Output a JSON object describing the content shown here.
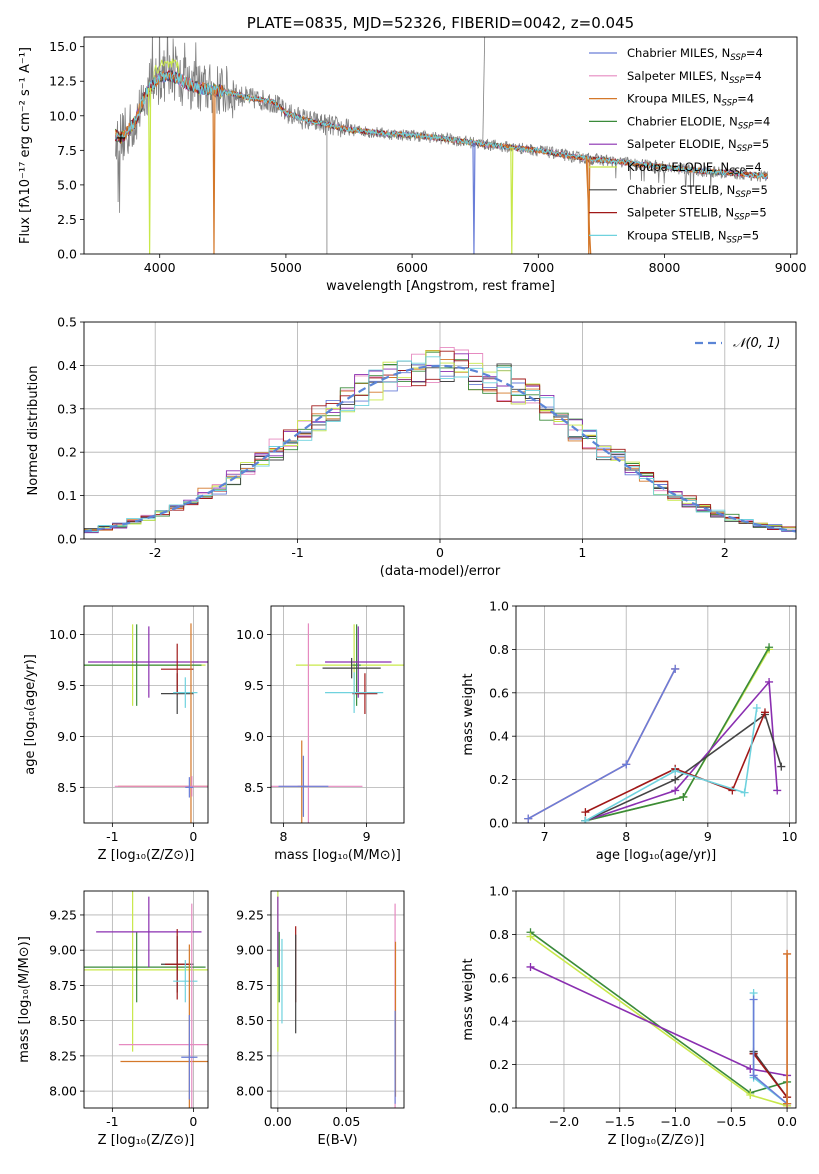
{
  "colors": {
    "Chabrier MILES": "#6a7ed8",
    "Salpeter MILES": "#e68ac0",
    "Kroupa MILES": "#d4782a",
    "Chabrier ELODIE": "#3a8a3a",
    "Salpeter ELODIE": "#8a2fb0",
    "Kroupa ELODIE": "#c8e84a",
    "Chabrier STELIB": "#444444",
    "Salpeter STELIB": "#a01818",
    "Kroupa STELIB": "#6fd2de",
    "data": "#808080",
    "normal": "#5b85d6",
    "grid": "#b0b0b0"
  },
  "chart_data": [
    {
      "id": "spectrum",
      "type": "line",
      "title": "PLATE=0835, MJD=52326, FIBERID=0042, z=0.045",
      "xlabel": "wavelength [Angstrom, rest frame]",
      "ylabel": "Flux [fλ10⁻¹⁷ erg cm⁻² s⁻¹ A⁻¹]",
      "xlim": [
        3400,
        9050
      ],
      "ylim": [
        0,
        15.7
      ],
      "xticks": [
        4000,
        5000,
        6000,
        7000,
        8000,
        9000
      ],
      "yticks": [
        0.0,
        2.5,
        5.0,
        7.5,
        10.0,
        12.5,
        15.0
      ],
      "grid": false,
      "legend_position": "top-right",
      "continuum": {
        "x": [
          3650,
          3700,
          3800,
          3900,
          4000,
          4100,
          4200,
          4300,
          4500,
          4700,
          4900,
          5000,
          5200,
          5500,
          5800,
          6000,
          6300,
          6600,
          7000,
          7300,
          7600,
          8000,
          8300,
          8600,
          8820
        ],
        "y": [
          8.6,
          8.4,
          9.5,
          11.8,
          12.8,
          12.9,
          12.4,
          12.0,
          11.8,
          11.3,
          11.0,
          10.2,
          9.6,
          9.0,
          8.7,
          8.6,
          8.3,
          7.9,
          7.5,
          7.0,
          6.7,
          6.3,
          6.0,
          5.8,
          5.6
        ]
      },
      "dips": [
        {
          "x": 3920,
          "series": "Kroupa ELODIE"
        },
        {
          "x": 4430,
          "series": "Kroupa MILES"
        },
        {
          "x": 6490,
          "series": "Chabrier MILES"
        },
        {
          "x": 6790,
          "series": "Kroupa ELODIE"
        },
        {
          "x": 7400,
          "series": "Kroupa MILES"
        }
      ],
      "legend": [
        {
          "name": "Chabrier MILES, N",
          "sub": "SSP",
          "suffix": "=4"
        },
        {
          "name": "Salpeter MILES, N",
          "sub": "SSP",
          "suffix": "=4"
        },
        {
          "name": "Kroupa MILES, N",
          "sub": "SSP",
          "suffix": "=4"
        },
        {
          "name": "Chabrier ELODIE, N",
          "sub": "SSP",
          "suffix": "=4"
        },
        {
          "name": "Salpeter ELODIE, N",
          "sub": "SSP",
          "suffix": "=5"
        },
        {
          "name": "Kroupa ELODIE, N",
          "sub": "SSP",
          "suffix": "=4"
        },
        {
          "name": "Chabrier STELIB, N",
          "sub": "SSP",
          "suffix": "=5"
        },
        {
          "name": "Salpeter STELIB, N",
          "sub": "SSP",
          "suffix": "=5"
        },
        {
          "name": "Kroupa STELIB, N",
          "sub": "SSP",
          "suffix": "=5"
        }
      ]
    },
    {
      "id": "residuals",
      "type": "line",
      "xlabel": "(data-model)/error",
      "ylabel": "Normed distribution",
      "xlim": [
        -2.5,
        2.5
      ],
      "ylim": [
        0,
        0.5
      ],
      "xticks": [
        -2,
        -1,
        0,
        1,
        2
      ],
      "yticks": [
        0.0,
        0.1,
        0.2,
        0.3,
        0.4,
        0.5
      ],
      "grid": true,
      "legend_position": "top-right",
      "legend_label": "𝒩(0, 1)",
      "bin_width": 0.1
    },
    {
      "id": "age-vs-Z",
      "type": "scatter",
      "xlabel": "Z [log₁₀(Z/Z⊙)]",
      "ylabel": "age  [log₁₀(age/yr)]",
      "xlim": [
        -1.35,
        0.18
      ],
      "ylim": [
        8.15,
        10.28
      ],
      "xticks": [
        -1,
        0
      ],
      "yticks": [
        8.5,
        9.0,
        9.5,
        10.0
      ],
      "grid": true,
      "points": [
        {
          "series": "Kroupa ELODIE",
          "x": -0.75,
          "y": 9.7,
          "xerr": 0.9,
          "yerr": 0.4
        },
        {
          "series": "Chabrier ELODIE",
          "x": -0.7,
          "y": 9.7,
          "xerr": 0.8,
          "yerr": 0.4
        },
        {
          "series": "Salpeter ELODIE",
          "x": -0.55,
          "y": 9.73,
          "xerr": 0.75,
          "yerr": 0.35
        },
        {
          "series": "Chabrier STELIB",
          "x": -0.2,
          "y": 9.42,
          "xerr": 0.2,
          "yerr": 0.2
        },
        {
          "series": "Salpeter STELIB",
          "x": -0.2,
          "y": 9.66,
          "xerr": 0.2,
          "yerr": 0.25
        },
        {
          "series": "Kroupa STELIB",
          "x": -0.1,
          "y": 9.43,
          "xerr": 0.15,
          "yerr": 0.15
        },
        {
          "series": "Kroupa MILES",
          "x": -0.03,
          "y": 8.51,
          "xerr": 0.9,
          "yerr": 1.6
        },
        {
          "series": "Salpeter MILES",
          "x": -0.02,
          "y": 8.51,
          "xerr": 0.95,
          "yerr": 0.1
        },
        {
          "series": "Chabrier MILES",
          "x": -0.05,
          "y": 8.5,
          "xerr": 0.05,
          "yerr": 0.1
        }
      ]
    },
    {
      "id": "age-vs-mass",
      "type": "scatter",
      "xlabel": "mass [log₁₀(M/M⊙)]",
      "ylabel": "",
      "xlim": [
        7.85,
        9.45
      ],
      "ylim": [
        8.15,
        10.28
      ],
      "xticks": [
        8,
        9
      ],
      "yticks": [
        8.5,
        9.0,
        9.5,
        10.0
      ],
      "grid": true,
      "points": [
        {
          "series": "Kroupa ELODIE",
          "x": 8.85,
          "y": 9.7,
          "xerr": 0.7,
          "yerr": 0.4
        },
        {
          "series": "Chabrier ELODIE",
          "x": 8.88,
          "y": 9.7,
          "xerr": 0.05,
          "yerr": 0.4
        },
        {
          "series": "Salpeter ELODIE",
          "x": 8.9,
          "y": 9.73,
          "xerr": 0.4,
          "yerr": 0.35
        },
        {
          "series": "Chabrier STELIB",
          "x": 8.82,
          "y": 9.67,
          "xerr": 0.35,
          "yerr": 0.1
        },
        {
          "series": "Salpeter STELIB",
          "x": 8.98,
          "y": 9.42,
          "xerr": 0.15,
          "yerr": 0.2
        },
        {
          "series": "Kroupa STELIB",
          "x": 8.85,
          "y": 9.43,
          "xerr": 0.35,
          "yerr": 0.2
        },
        {
          "series": "Kroupa MILES",
          "x": 8.22,
          "y": 8.51,
          "xerr": 0.05,
          "yerr": 0.45
        },
        {
          "series": "Salpeter MILES",
          "x": 8.3,
          "y": 8.51,
          "xerr": 0.65,
          "yerr": 1.6
        },
        {
          "series": "Chabrier MILES",
          "x": 8.24,
          "y": 8.51,
          "xerr": 0.3,
          "yerr": 0.3
        }
      ]
    },
    {
      "id": "weight-vs-age",
      "type": "line",
      "xlabel": "age  [log₁₀(age/yr)]",
      "ylabel": "mass weight",
      "xlim": [
        6.65,
        10.08
      ],
      "ylim": [
        0,
        1
      ],
      "xticks": [
        7,
        8,
        9,
        10
      ],
      "yticks": [
        0.0,
        0.2,
        0.4,
        0.6,
        0.8,
        1.0
      ],
      "grid": true,
      "series": [
        {
          "name": "Kroupa MILES",
          "x": [
            6.8,
            8.0,
            8.6
          ],
          "y": [
            0.02,
            0.27,
            0.71
          ]
        },
        {
          "name": "Salpeter MILES",
          "x": [
            6.8,
            8.0,
            8.6
          ],
          "y": [
            0.02,
            0.27,
            0.71
          ]
        },
        {
          "name": "Chabrier MILES",
          "x": [
            6.8,
            8.0,
            8.6
          ],
          "y": [
            0.02,
            0.27,
            0.71
          ]
        },
        {
          "name": "Kroupa ELODIE",
          "x": [
            7.5,
            8.7,
            9.75
          ],
          "y": [
            0.01,
            0.12,
            0.8
          ]
        },
        {
          "name": "Chabrier ELODIE",
          "x": [
            7.5,
            8.7,
            9.75
          ],
          "y": [
            0.01,
            0.12,
            0.81
          ]
        },
        {
          "name": "Salpeter ELODIE",
          "x": [
            7.5,
            8.6,
            9.75,
            9.85
          ],
          "y": [
            0.01,
            0.15,
            0.65,
            0.15
          ]
        },
        {
          "name": "Chabrier STELIB",
          "x": [
            7.5,
            8.6,
            9.7,
            9.9
          ],
          "y": [
            0.01,
            0.2,
            0.5,
            0.26
          ]
        },
        {
          "name": "Salpeter STELIB",
          "x": [
            7.5,
            8.6,
            9.3,
            9.7
          ],
          "y": [
            0.05,
            0.25,
            0.15,
            0.51
          ]
        },
        {
          "name": "Kroupa STELIB",
          "x": [
            7.5,
            8.6,
            9.45,
            9.6
          ],
          "y": [
            0.01,
            0.24,
            0.14,
            0.53
          ]
        }
      ]
    },
    {
      "id": "mass-vs-Z",
      "type": "scatter",
      "xlabel": "Z [log₁₀(Z/Z⊙)]",
      "ylabel": "mass [log₁₀(M/M⊙)]",
      "xlim": [
        -1.35,
        0.18
      ],
      "ylim": [
        7.88,
        9.42
      ],
      "xticks": [
        -1,
        0
      ],
      "yticks": [
        8.0,
        8.25,
        8.5,
        8.75,
        9.0,
        9.25
      ],
      "grid": true,
      "points": [
        {
          "series": "Kroupa ELODIE",
          "x": -0.75,
          "y": 8.86,
          "xerr": 0.95,
          "yerr": 0.58
        },
        {
          "series": "Chabrier ELODIE",
          "x": -0.7,
          "y": 8.88,
          "xerr": 0.85,
          "yerr": 0.25
        },
        {
          "series": "Salpeter ELODIE",
          "x": -0.55,
          "y": 9.13,
          "xerr": 0.65,
          "yerr": 0.25
        },
        {
          "series": "Chabrier STELIB",
          "x": -0.2,
          "y": 8.9,
          "xerr": 0.2,
          "yerr": 0.2
        },
        {
          "series": "Salpeter STELIB",
          "x": -0.2,
          "y": 8.9,
          "xerr": 0.15,
          "yerr": 0.25
        },
        {
          "series": "Kroupa STELIB",
          "x": -0.1,
          "y": 8.78,
          "xerr": 0.15,
          "yerr": 0.15
        },
        {
          "series": "Kroupa MILES",
          "x": -0.05,
          "y": 8.21,
          "xerr": 0.85,
          "yerr": 0.83
        },
        {
          "series": "Salpeter MILES",
          "x": -0.02,
          "y": 8.33,
          "xerr": 0.9,
          "yerr": 1.0
        },
        {
          "series": "Chabrier MILES",
          "x": -0.05,
          "y": 8.24,
          "xerr": 0.1,
          "yerr": 0.3
        }
      ]
    },
    {
      "id": "mass-vs-ebv",
      "type": "scatter",
      "xlabel": "E(B-V)",
      "ylabel": "",
      "xlim": [
        -0.005,
        0.092
      ],
      "ylim": [
        7.88,
        9.42
      ],
      "xticks": [
        0.0,
        0.05
      ],
      "xtick_labels": [
        "0.00",
        "0.05"
      ],
      "yticks": [
        8.0,
        8.25,
        8.5,
        8.75,
        9.0,
        9.25
      ],
      "grid": true,
      "points": [
        {
          "series": "Kroupa ELODIE",
          "x": 0.0,
          "y": 8.86,
          "xerr": 0,
          "yerr": 0.58
        },
        {
          "series": "Chabrier ELODIE",
          "x": 0.001,
          "y": 8.88,
          "xerr": 0,
          "yerr": 0.25
        },
        {
          "series": "Salpeter ELODIE",
          "x": 0.0,
          "y": 9.13,
          "xerr": 0,
          "yerr": 0.25
        },
        {
          "series": "Kroupa STELIB",
          "x": 0.003,
          "y": 8.78,
          "xerr": 0,
          "yerr": 0.3
        },
        {
          "series": "Salpeter STELIB",
          "x": 0.013,
          "y": 8.9,
          "xerr": 0,
          "yerr": 0.27
        },
        {
          "series": "Chabrier STELIB",
          "x": 0.013,
          "y": 8.76,
          "xerr": 0,
          "yerr": 0.35
        },
        {
          "series": "Salpeter MILES",
          "x": 0.0855,
          "y": 8.33,
          "xerr": 0,
          "yerr": 1.0
        },
        {
          "series": "Kroupa MILES",
          "x": 0.0858,
          "y": 8.51,
          "xerr": 0,
          "yerr": 0.55
        },
        {
          "series": "Chabrier MILES",
          "x": 0.0855,
          "y": 8.24,
          "xerr": 0,
          "yerr": 0.33
        }
      ]
    },
    {
      "id": "weight-vs-Z",
      "type": "line",
      "xlabel": "Z [log₁₀(Z/Z⊙)]",
      "ylabel": "mass weight",
      "xlim": [
        -2.43,
        0.08
      ],
      "ylim": [
        0,
        1
      ],
      "xticks": [
        -2.0,
        -1.5,
        -1.0,
        -0.5,
        0.0
      ],
      "xtick_labels": [
        "−2.0",
        "−1.5",
        "−1.0",
        "−0.5",
        "0.0"
      ],
      "yticks": [
        0.0,
        0.2,
        0.4,
        0.6,
        0.8,
        1.0
      ],
      "grid": true,
      "series": [
        {
          "name": "Chabrier ELODIE",
          "x": [
            -2.3,
            -0.33,
            0.0
          ],
          "y": [
            0.81,
            0.07,
            0.12
          ]
        },
        {
          "name": "Kroupa ELODIE",
          "x": [
            -2.3,
            -0.33,
            0.0
          ],
          "y": [
            0.79,
            0.06,
            0.01
          ]
        },
        {
          "name": "Salpeter ELODIE",
          "x": [
            -2.3,
            -0.33,
            0.0
          ],
          "y": [
            0.65,
            0.18,
            0.15
          ]
        },
        {
          "name": "Chabrier STELIB",
          "x": [
            -0.3,
            -0.3,
            0.0,
            0.0
          ],
          "y": [
            0.26,
            0.26,
            0.05,
            0.02
          ]
        },
        {
          "name": "Salpeter STELIB",
          "x": [
            -0.3,
            -0.3,
            0.0
          ],
          "y": [
            0.25,
            0.25,
            0.05
          ]
        },
        {
          "name": "Kroupa STELIB",
          "x": [
            -0.3,
            -0.3,
            0.0
          ],
          "y": [
            0.53,
            0.14,
            0.02
          ]
        },
        {
          "name": "Chabrier MILES",
          "x": [
            -0.3,
            -0.3,
            0.0
          ],
          "y": [
            0.5,
            0.15,
            0.02
          ]
        },
        {
          "name": "Salpeter MILES",
          "x": [
            0.0,
            0.0
          ],
          "y": [
            0.71,
            0.02
          ]
        },
        {
          "name": "Kroupa MILES",
          "x": [
            0.0,
            0.0
          ],
          "y": [
            0.71,
            0.02
          ]
        }
      ]
    }
  ]
}
